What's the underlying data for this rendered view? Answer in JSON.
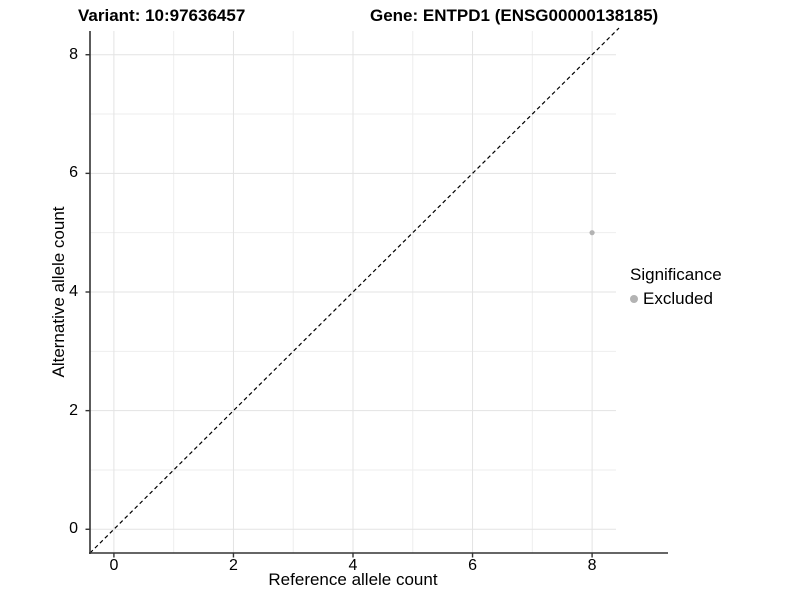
{
  "titles": {
    "variant": "Variant: 10:97636457",
    "gene": "Gene: ENTPD1 (ENSG00000138185)"
  },
  "legend": {
    "title": "Significance",
    "items": [
      {
        "label": "Excluded",
        "color": "#b3b3b3"
      }
    ]
  },
  "chart_data": {
    "type": "scatter",
    "title": "Variant: 10:97636457 | Gene: ENTPD1 (ENSG00000138185)",
    "xlabel": "Reference allele count",
    "ylabel": "Alternative allele count",
    "xlim": [
      -0.4,
      8.4
    ],
    "ylim": [
      -0.4,
      8.4
    ],
    "x_major_ticks": [
      0,
      2,
      4,
      6,
      8
    ],
    "y_major_ticks": [
      0,
      2,
      4,
      6,
      8
    ],
    "x_minor_gridlines": [
      1,
      3,
      5,
      7
    ],
    "y_minor_gridlines": [
      1,
      3,
      5,
      7
    ],
    "grid": "on",
    "legend_position": "right",
    "series": [
      {
        "name": "Excluded",
        "color": "#b3b3b3",
        "points": [
          {
            "x": 8,
            "y": 5
          }
        ]
      }
    ],
    "reference_line": {
      "equation": "y = x",
      "style": "dashed",
      "color": "#000000"
    },
    "colors": {
      "axis_line": "#333333",
      "major_gridline": "#e3e3e3",
      "minor_gridline": "#eeeeee",
      "point": "#b3b3b3",
      "background": "#ffffff"
    }
  }
}
